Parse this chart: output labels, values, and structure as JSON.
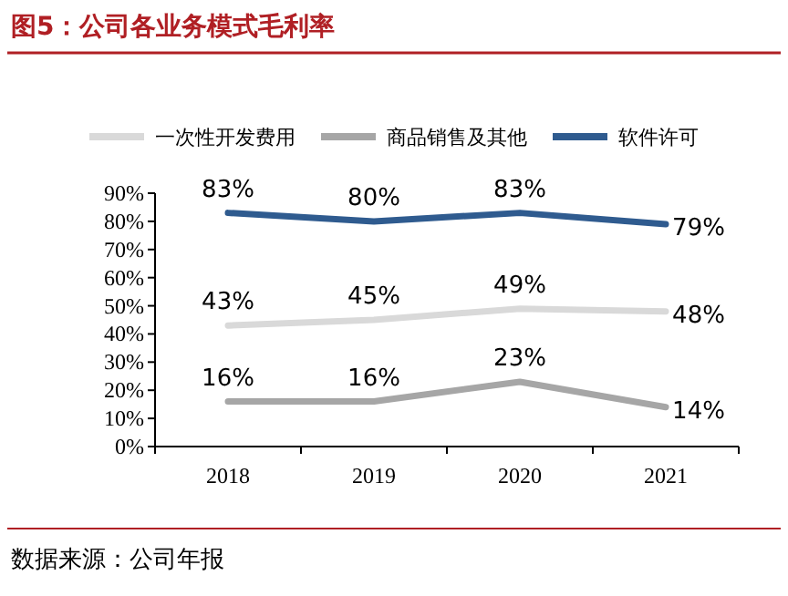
{
  "chart_data": {
    "type": "line",
    "title": "图5：公司各业务模式毛利率",
    "categories": [
      "2018",
      "2019",
      "2020",
      "2021"
    ],
    "series": [
      {
        "name": "一次性开发费用",
        "color": "#d9d9d9",
        "values": [
          43,
          45,
          49,
          48
        ],
        "value_labels": [
          "43%",
          "45%",
          "49%",
          "48%"
        ]
      },
      {
        "name": "商品销售及其他",
        "color": "#a6a6a6",
        "values": [
          16,
          16,
          23,
          14
        ],
        "value_labels": [
          "16%",
          "16%",
          "23%",
          "14%"
        ]
      },
      {
        "name": "软件许可",
        "color": "#2f5b8f",
        "values": [
          83,
          80,
          83,
          79
        ],
        "value_labels": [
          "83%",
          "80%",
          "83%",
          "79%"
        ]
      }
    ],
    "ylim": [
      0,
      90
    ],
    "yticks": [
      {
        "value": 0,
        "label": "0%"
      },
      {
        "value": 10,
        "label": "10%"
      },
      {
        "value": 20,
        "label": "20%"
      },
      {
        "value": 30,
        "label": "30%"
      },
      {
        "value": 40,
        "label": "40%"
      },
      {
        "value": 50,
        "label": "50%"
      },
      {
        "value": 60,
        "label": "60%"
      },
      {
        "value": 70,
        "label": "70%"
      },
      {
        "value": 80,
        "label": "80%"
      },
      {
        "value": 90,
        "label": "90%"
      }
    ],
    "legend": "top",
    "grid": false,
    "marker": "none",
    "line_style": "solid",
    "annotations": [
      "数据来源：公司年报"
    ]
  }
}
